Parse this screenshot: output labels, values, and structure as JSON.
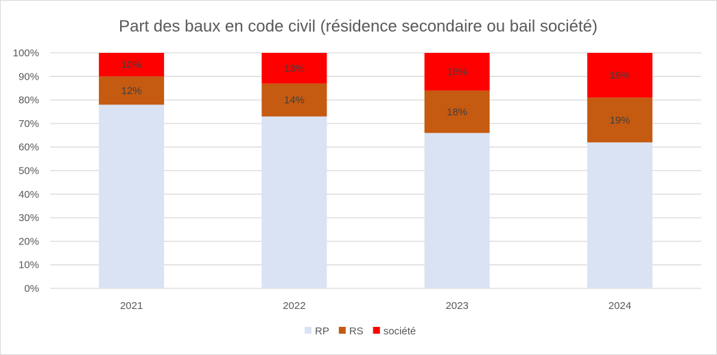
{
  "chart_data": {
    "type": "bar",
    "stacked": "percent",
    "title": "Part des baux en code civil (résidence secondaire ou bail société)",
    "categories": [
      "2021",
      "2022",
      "2023",
      "2024"
    ],
    "series": [
      {
        "name": "RP",
        "color": "#dae3f3",
        "values": [
          78,
          73,
          66,
          62
        ],
        "show_labels": false
      },
      {
        "name": "RS",
        "color": "#c55a11",
        "values": [
          12,
          14,
          18,
          19
        ],
        "show_labels": true
      },
      {
        "name": "société",
        "color": "#ff0000",
        "values": [
          10,
          13,
          16,
          19
        ],
        "show_labels": true
      }
    ],
    "ylim": [
      0,
      100
    ],
    "yticks": [
      "0%",
      "10%",
      "20%",
      "30%",
      "40%",
      "50%",
      "60%",
      "70%",
      "80%",
      "90%",
      "100%"
    ],
    "grid": true,
    "legend": "bottom"
  }
}
